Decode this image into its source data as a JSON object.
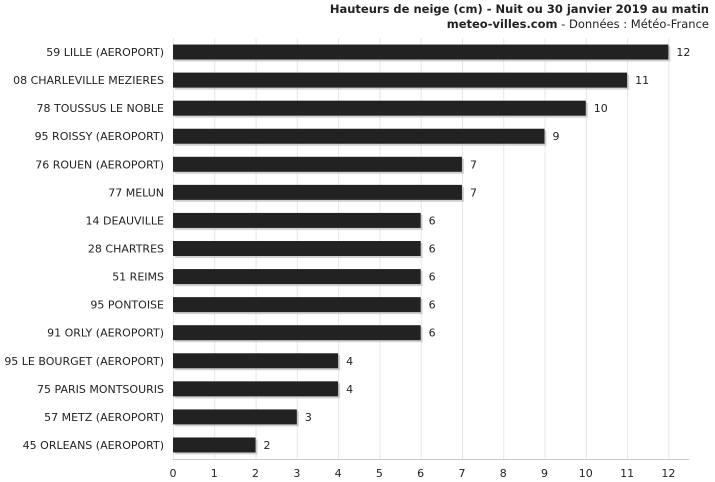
{
  "header": {
    "title": "Hauteurs de neige (cm) - Nuit ou 30 janvier 2019 au matin",
    "site": "meteo-villes.com",
    "source": " - Données : Météo-France"
  },
  "chart_data": {
    "type": "bar",
    "orientation": "horizontal",
    "title": "Hauteurs de neige (cm) - Nuit ou 30 janvier 2019 au matin",
    "categories": [
      "59 LILLE (AEROPORT)",
      "08 CHARLEVILLE MEZIERES",
      "78 TOUSSUS LE NOBLE",
      "95 ROISSY (AEROPORT)",
      "76 ROUEN (AEROPORT)",
      "77 MELUN",
      "14 DEAUVILLE",
      "28 CHARTRES",
      "51 REIMS",
      "95 PONTOISE",
      "91 ORLY (AEROPORT)",
      "95 LE BOURGET (AEROPORT)",
      "75 PARIS MONTSOURIS",
      "57 METZ (AEROPORT)",
      "45 ORLEANS (AEROPORT)"
    ],
    "values": [
      12,
      11,
      10,
      9,
      7,
      7,
      6,
      6,
      6,
      6,
      6,
      4,
      4,
      3,
      2
    ],
    "xlim": [
      0,
      12.5
    ],
    "xticks": [
      0,
      1,
      2,
      3,
      4,
      5,
      6,
      7,
      8,
      9,
      10,
      11,
      12
    ],
    "grid": true,
    "data_labels": true,
    "colors": {
      "bar": "#222222",
      "grid": "#e6e6e6",
      "text": "#222222"
    }
  }
}
